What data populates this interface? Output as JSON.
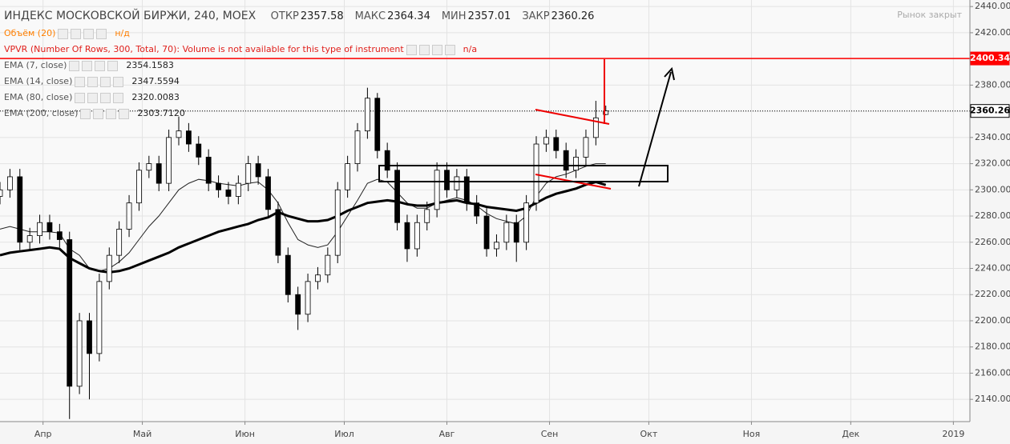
{
  "header": {
    "symbol": "ИНДЕКС МОСКОВСКОЙ БИРЖИ, 240, MOEX",
    "ohlc": [
      {
        "label": "ОТКР",
        "value": 2357.58
      },
      {
        "label": "МАКС",
        "value": 2364.34
      },
      {
        "label": "МИН",
        "value": 2357.01
      },
      {
        "label": "ЗАКР",
        "value": 2360.26
      }
    ],
    "status": "Рынок закрыт"
  },
  "chart_data": {
    "type": "candlestick",
    "x": [
      -13,
      -10,
      -7,
      -4,
      -1,
      2,
      5,
      8,
      11,
      14,
      17,
      20,
      23,
      26,
      29,
      32,
      35,
      38,
      41,
      44,
      47,
      50,
      53,
      56,
      59,
      62,
      65,
      68,
      71,
      74,
      77,
      80,
      83,
      86,
      89,
      92,
      95,
      98,
      101,
      104,
      107,
      110,
      113,
      116,
      119,
      122,
      125,
      128,
      131,
      134,
      137,
      140,
      143,
      146,
      149,
      152,
      155,
      158,
      161,
      164,
      167,
      170
    ],
    "open": [
      2295,
      2300,
      2310,
      2260,
      2265,
      2275,
      2268,
      2262,
      2150,
      2200,
      2175,
      2230,
      2250,
      2270,
      2290,
      2315,
      2320,
      2305,
      2340,
      2345,
      2335,
      2325,
      2305,
      2300,
      2295,
      2305,
      2320,
      2310,
      2285,
      2250,
      2220,
      2205,
      2230,
      2235,
      2250,
      2300,
      2320,
      2345,
      2370,
      2330,
      2315,
      2275,
      2255,
      2275,
      2285,
      2315,
      2300,
      2310,
      2290,
      2280,
      2255,
      2260,
      2275,
      2260,
      2290,
      2335,
      2340,
      2330,
      2315,
      2325,
      2340,
      2357.58
    ],
    "high": [
      2306,
      2316,
      2316,
      2271,
      2281,
      2281,
      2274,
      2268,
      2206,
      2206,
      2236,
      2256,
      2276,
      2296,
      2321,
      2326,
      2326,
      2346,
      2356,
      2351,
      2341,
      2331,
      2311,
      2306,
      2311,
      2326,
      2326,
      2316,
      2291,
      2256,
      2226,
      2236,
      2241,
      2256,
      2306,
      2326,
      2351,
      2378,
      2374,
      2336,
      2321,
      2281,
      2281,
      2291,
      2321,
      2321,
      2316,
      2316,
      2296,
      2286,
      2266,
      2281,
      2281,
      2296,
      2341,
      2346,
      2346,
      2336,
      2331,
      2346,
      2368,
      2364.34
    ],
    "low": [
      2289,
      2294,
      2254,
      2254,
      2259,
      2262,
      2256,
      2125,
      2144,
      2140,
      2169,
      2224,
      2244,
      2264,
      2284,
      2309,
      2299,
      2299,
      2334,
      2329,
      2319,
      2299,
      2294,
      2289,
      2289,
      2299,
      2304,
      2279,
      2244,
      2214,
      2193,
      2199,
      2224,
      2229,
      2244,
      2294,
      2314,
      2339,
      2324,
      2309,
      2269,
      2245,
      2249,
      2269,
      2279,
      2294,
      2294,
      2284,
      2274,
      2249,
      2249,
      2254,
      2245,
      2254,
      2284,
      2329,
      2324,
      2309,
      2309,
      2319,
      2334,
      2357.01
    ],
    "close": [
      2300,
      2310,
      2260,
      2265,
      2275,
      2268,
      2262,
      2150,
      2200,
      2175,
      2230,
      2250,
      2270,
      2290,
      2315,
      2320,
      2305,
      2340,
      2345,
      2335,
      2325,
      2305,
      2300,
      2295,
      2305,
      2320,
      2310,
      2285,
      2250,
      2220,
      2205,
      2230,
      2235,
      2250,
      2300,
      2320,
      2345,
      2370,
      2330,
      2315,
      2275,
      2255,
      2275,
      2285,
      2315,
      2300,
      2310,
      2290,
      2280,
      2255,
      2260,
      2275,
      2260,
      2290,
      2335,
      2340,
      2330,
      2315,
      2325,
      2340,
      2355,
      2360.26
    ],
    "up_color": "#ffffff",
    "down_color": "#000000",
    "xlim": [
      -13,
      280
    ],
    "xticks": [
      {
        "value": 0,
        "label": "Апр"
      },
      {
        "value": 30,
        "label": "Май"
      },
      {
        "value": 61,
        "label": "Июн"
      },
      {
        "value": 91,
        "label": "Июл"
      },
      {
        "value": 122,
        "label": "Авг"
      },
      {
        "value": 153,
        "label": "Сен"
      },
      {
        "value": 183,
        "label": "Окт"
      },
      {
        "value": 214,
        "label": "Ноя"
      },
      {
        "value": 244,
        "label": "Дек"
      },
      {
        "value": 275,
        "label": "2019"
      }
    ],
    "ylim": [
      2123,
      2445
    ],
    "yticks": [
      {
        "value": 2140,
        "label": "2140.00"
      },
      {
        "value": 2160,
        "label": "2160.00"
      },
      {
        "value": 2180,
        "label": "2180.00"
      },
      {
        "value": 2200,
        "label": "2200.00"
      },
      {
        "value": 2220,
        "label": "2220.00"
      },
      {
        "value": 2240,
        "label": "2240.00"
      },
      {
        "value": 2260,
        "label": "2260.00"
      },
      {
        "value": 2280,
        "label": "2280.00"
      },
      {
        "value": 2300,
        "label": "2300.00"
      },
      {
        "value": 2320,
        "label": "2320.00"
      },
      {
        "value": 2340,
        "label": "2340.00"
      },
      {
        "value": 2360,
        "label": "2360.00"
      },
      {
        "value": 2380,
        "label": "2380.00"
      },
      {
        "value": 2400,
        "label": "2400.00"
      },
      {
        "value": 2420,
        "label": "2420.00"
      },
      {
        "value": 2440,
        "label": "2440.00"
      }
    ],
    "grid": true,
    "hlines": [
      {
        "value": 2400.34,
        "color": "#ff0000",
        "style": "solid"
      },
      {
        "value": 2360.26,
        "color": "#000000",
        "style": "dotted"
      }
    ],
    "indicators": [
      {
        "name": "Объём (20)",
        "value": "н/д",
        "color": "#ff7f00"
      },
      {
        "name": "VPVR (Number Of Rows, 300, Total, 70): Volume is not available for this type of instrument",
        "value": "n/a",
        "color": "#e0201c"
      },
      {
        "name": "EMA (7, close)",
        "value": 2354.1583
      },
      {
        "name": "EMA (14, close)",
        "value": 2347.5594
      },
      {
        "name": "EMA (80, close)",
        "value": 2320.0083,
        "color": "#222222",
        "width": 1,
        "values": [
          2270,
          2272,
          2270,
          2268,
          2268,
          2268,
          2267,
          2255,
          2250,
          2240,
          2238,
          2240,
          2245,
          2252,
          2262,
          2272,
          2280,
          2290,
          2300,
          2305,
          2308,
          2307,
          2305,
          2304,
          2303,
          2305,
          2306,
          2300,
          2290,
          2275,
          2262,
          2258,
          2256,
          2258,
          2268,
          2280,
          2292,
          2305,
          2308,
          2306,
          2298,
          2290,
          2286,
          2286,
          2290,
          2292,
          2294,
          2292,
          2288,
          2282,
          2278,
          2276,
          2274,
          2280,
          2295,
          2305,
          2310,
          2312,
          2315,
          2318,
          2320,
          2320.0083
        ]
      },
      {
        "name": "EMA (200, close)",
        "value": {
          "value": 2303.712,
          "label": "2303.7120"
        },
        "color": "#000000",
        "width": 3,
        "values": [
          2250,
          2252,
          2253,
          2254,
          2255,
          2256,
          2255,
          2248,
          2244,
          2240,
          2238,
          2237,
          2238,
          2240,
          2243,
          2246,
          2249,
          2252,
          2256,
          2259,
          2262,
          2265,
          2268,
          2270,
          2272,
          2274,
          2277,
          2279,
          2283,
          2280,
          2278,
          2276,
          2276,
          2277,
          2280,
          2284,
          2287,
          2290,
          2291,
          2292,
          2291,
          2289,
          2288,
          2288,
          2290,
          2291,
          2292,
          2290,
          2289,
          2287,
          2286,
          2285,
          2284,
          2286,
          2290,
          2294,
          2297,
          2299,
          2301,
          2304,
          2306,
          2303.712
        ]
      }
    ]
  }
}
